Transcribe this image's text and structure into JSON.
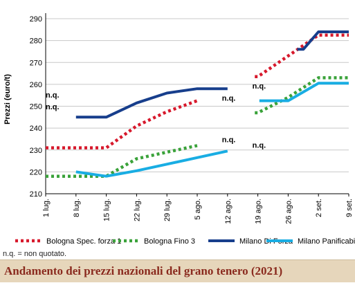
{
  "chart_data": {
    "type": "line",
    "title": "Andamento dei prezzi nazionali del grano tenero (2021)",
    "ylabel": "Prezzi (euro/t)",
    "xlabel": "",
    "ylim": [
      210,
      290
    ],
    "yticks": [
      210,
      220,
      230,
      240,
      250,
      260,
      270,
      280,
      290
    ],
    "categories": [
      "1 lug.",
      "8 lug.",
      "15 lug.",
      "22 lug.",
      "29 lug.",
      "5 ago.",
      "12 ago.",
      "19 ago.",
      "26 ago.",
      "2 set.",
      "9 set."
    ],
    "grid": "horizontal",
    "legend_position": "bottom",
    "series": [
      {
        "name": "Bologna Spec. forza 1",
        "color": "#d7192c",
        "style": "dotted",
        "segments": [
          [
            [
              0,
              231
            ],
            [
              1,
              231
            ],
            [
              2,
              231
            ],
            [
              3,
              241
            ],
            [
              4,
              247.5
            ],
            [
              5,
              252.5
            ]
          ],
          [
            [
              6.9,
              263.5
            ],
            [
              7,
              263.5
            ],
            [
              8,
              273
            ],
            [
              9,
              282.5
            ],
            [
              10,
              282.5
            ]
          ]
        ]
      },
      {
        "name": "Bologna Fino 3",
        "color": "#3aa23a",
        "style": "dotted",
        "segments": [
          [
            [
              0,
              218
            ],
            [
              1,
              218
            ],
            [
              2,
              218
            ],
            [
              3,
              226
            ],
            [
              4,
              229
            ],
            [
              5,
              232
            ]
          ],
          [
            [
              6.9,
              247
            ],
            [
              7,
              247
            ],
            [
              8,
              254
            ],
            [
              9,
              263
            ],
            [
              10,
              263
            ]
          ]
        ]
      },
      {
        "name": "Milano Di Forza",
        "color": "#173e8c",
        "style": "solid",
        "segments": [
          [
            [
              1,
              245
            ],
            [
              2,
              245
            ],
            [
              3,
              251.5
            ],
            [
              4,
              256
            ],
            [
              5,
              258
            ],
            [
              6,
              258
            ]
          ],
          [
            [
              8.3,
              276
            ],
            [
              8.5,
              276
            ],
            [
              9,
              284
            ],
            [
              10,
              284
            ]
          ]
        ]
      },
      {
        "name": "Milano Panificabile",
        "color": "#19ade3",
        "style": "solid",
        "segments": [
          [
            [
              1,
              220
            ],
            [
              2,
              218
            ],
            [
              3,
              220.5
            ],
            [
              4,
              223.5
            ],
            [
              5,
              226.5
            ],
            [
              6,
              229.5
            ]
          ],
          [
            [
              7.05,
              252.5
            ],
            [
              7.5,
              252.5
            ],
            [
              8,
              252.5
            ],
            [
              9,
              260.5
            ],
            [
              10,
              260.5
            ]
          ]
        ]
      }
    ],
    "annotations": [
      {
        "text": "n.q.",
        "x": 0,
        "y": 254
      },
      {
        "text": "n.q.",
        "x": 0,
        "y": 248.5
      },
      {
        "text": "n.q.",
        "x": 6,
        "y": 252.5
      },
      {
        "text": "n.q.",
        "x": 6,
        "y": 233.5
      },
      {
        "text": "n.q.",
        "x": 7,
        "y": 258
      },
      {
        "text": "n.q.",
        "x": 7,
        "y": 231
      }
    ]
  },
  "footnote": "n.q. = non quotato.",
  "title_bar": {
    "text": "Andamento dei prezzi nazionali del grano tenero (2021)",
    "background": "#e6d6bb",
    "text_color": "#8a2a1e"
  }
}
